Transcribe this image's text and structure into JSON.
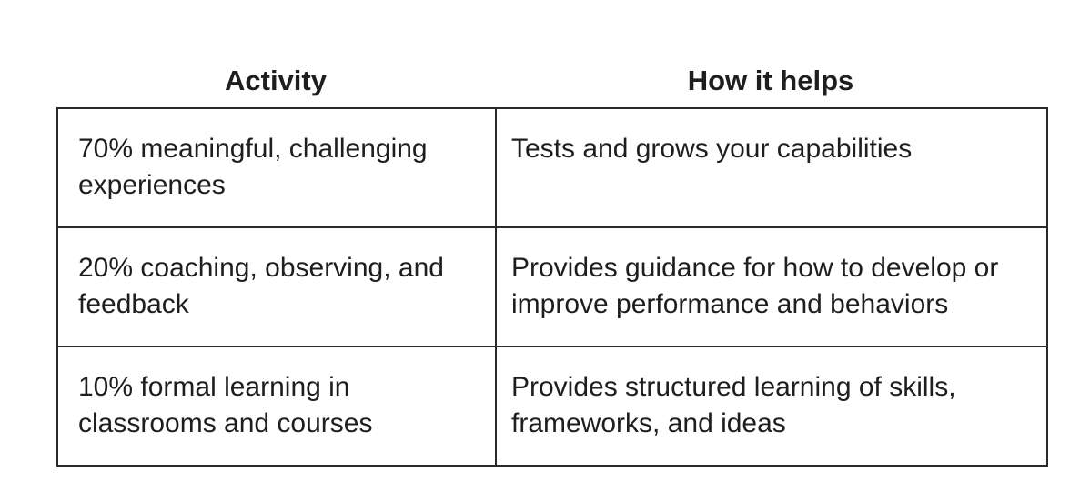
{
  "table": {
    "headers": {
      "activity": "Activity",
      "how_it_helps": "How it helps"
    },
    "rows": [
      {
        "activity": "70% meaningful, challenging experiences",
        "how_it_helps": "Tests and grows your capabilities"
      },
      {
        "activity": "20% coaching, observing, and feedback",
        "how_it_helps": "Provides guidance for how to develop or improve performance and behaviors"
      },
      {
        "activity": "10% formal learning in classrooms and courses",
        "how_it_helps": "Provides structured learning of skills, frameworks, and ideas"
      }
    ]
  }
}
